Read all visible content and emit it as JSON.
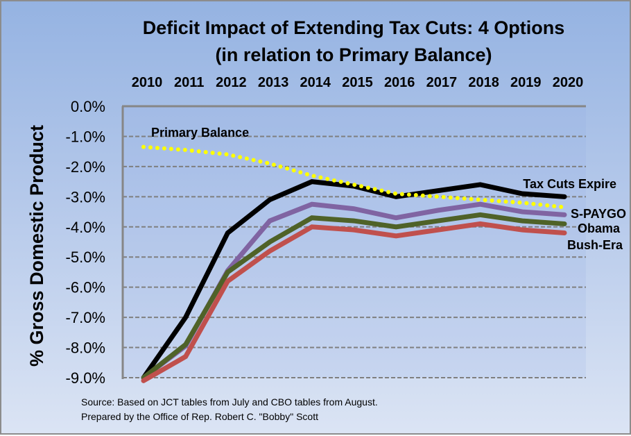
{
  "chart_data": {
    "type": "line",
    "title": "Deficit Impact of Extending Tax Cuts:  4 Options",
    "subtitle": "(in relation to Primary Balance)",
    "xlabel": "",
    "ylabel": "% Gross Domestic Product",
    "x": [
      "2010",
      "2011",
      "2012",
      "2013",
      "2014",
      "2015",
      "2016",
      "2017",
      "2018",
      "2019",
      "2020"
    ],
    "x_axis_position": "top",
    "ylim": [
      -9.0,
      0.0
    ],
    "yticks": [
      "0.0%",
      "-1.0%",
      "-2.0%",
      "-3.0%",
      "-4.0%",
      "-5.0%",
      "-6.0%",
      "-7.0%",
      "-8.0%",
      "-9.0%"
    ],
    "ytick_values": [
      0,
      -1,
      -2,
      -3,
      -4,
      -5,
      -6,
      -7,
      -8,
      -9
    ],
    "grid": true,
    "legend": "inline-labels-right",
    "series": [
      {
        "name": "Primary Balance",
        "color": "#ffff00",
        "style": "dotted",
        "label_position": "top-left",
        "values": [
          -1.35,
          -1.45,
          -1.6,
          -1.9,
          -2.3,
          -2.6,
          -2.9,
          -3.0,
          -3.1,
          -3.2,
          -3.35
        ]
      },
      {
        "name": "Tax Cuts Expire",
        "color": "#000000",
        "style": "solid",
        "values": [
          -9.0,
          -7.0,
          -4.2,
          -3.1,
          -2.5,
          -2.65,
          -3.0,
          -2.8,
          -2.6,
          -2.9,
          -3.0
        ]
      },
      {
        "name": "S-PAYGO",
        "color": "#8064a2",
        "style": "solid",
        "values": [
          -9.0,
          -7.95,
          -5.45,
          -3.8,
          -3.25,
          -3.4,
          -3.7,
          -3.45,
          -3.25,
          -3.5,
          -3.6
        ]
      },
      {
        "name": "Obama",
        "color": "#4f6228",
        "style": "solid",
        "values": [
          -9.0,
          -7.9,
          -5.5,
          -4.5,
          -3.7,
          -3.8,
          -4.0,
          -3.8,
          -3.6,
          -3.8,
          -3.9
        ]
      },
      {
        "name": "Bush-Era",
        "color": "#c0504d",
        "style": "solid",
        "values": [
          -9.1,
          -8.3,
          -5.8,
          -4.8,
          -4.0,
          -4.1,
          -4.3,
          -4.1,
          -3.9,
          -4.1,
          -4.2
        ]
      }
    ],
    "annotations": [
      "Source: Based on JCT tables from July and CBO tables from August.",
      "Prepared by the Office of Rep. Robert C. \"Bobby\" Scott"
    ]
  }
}
